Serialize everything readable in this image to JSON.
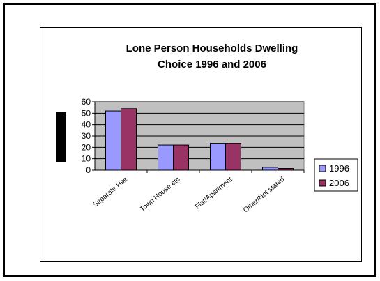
{
  "chart_data": {
    "type": "bar",
    "title_lines": [
      "Lone Person Households Dwelling",
      "Choice 1996 and 2006"
    ],
    "categories": [
      "Separate Hse",
      "Town House etc",
      "Flat/Apartment",
      "Other/Not stated"
    ],
    "series": [
      {
        "name": "1996",
        "color": "#9999ff",
        "values": [
          52,
          22,
          23.5,
          2.5
        ]
      },
      {
        "name": "2006",
        "color": "#993366",
        "values": [
          54,
          22,
          23.5,
          1.5
        ]
      }
    ],
    "ylim": [
      0,
      60
    ],
    "yticks": [
      0,
      10,
      20,
      30,
      40,
      50,
      60
    ],
    "grid": true,
    "plot_background": "#c0c0c0",
    "legend_position": "right"
  }
}
